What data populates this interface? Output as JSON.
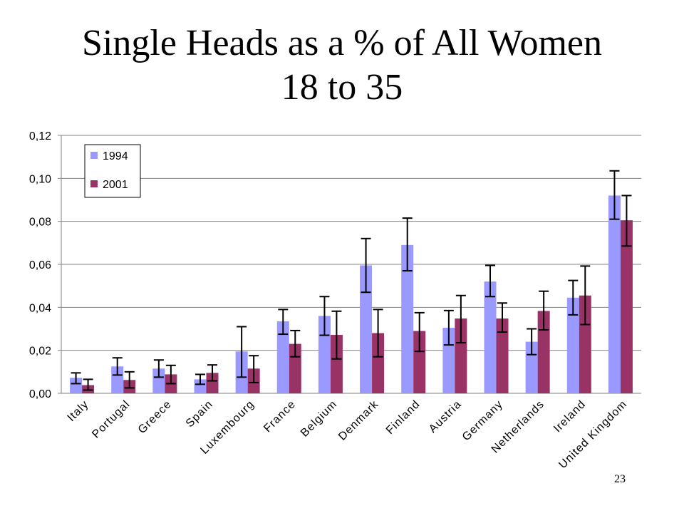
{
  "slide": {
    "title_line1": "Single Heads as a % of All Women",
    "title_line2": "18 to 35",
    "page_number": "23"
  },
  "chart_data": {
    "type": "bar",
    "title": "",
    "xlabel": "",
    "ylabel": "",
    "ylim": [
      0,
      0.12
    ],
    "yticks": [
      "0,00",
      "0,02",
      "0,04",
      "0,06",
      "0,08",
      "0,10",
      "0,12"
    ],
    "ytick_values": [
      0,
      0.02,
      0.04,
      0.06,
      0.08,
      0.1,
      0.12
    ],
    "grid": true,
    "legend_position": "top-left",
    "error_bars": true,
    "categories": [
      "Italy",
      "Portugal",
      "Greece",
      "Spain",
      "Luxembourg",
      "France",
      "Belgium",
      "Denmark",
      "Finland",
      "Austria",
      "Germany",
      "Netherlands",
      "Ireland",
      "United Kingdom"
    ],
    "series": [
      {
        "name": "1994",
        "color": "#9999ff",
        "values": [
          0.0072,
          0.0125,
          0.0115,
          0.0065,
          0.0195,
          0.0335,
          0.036,
          0.0595,
          0.069,
          0.0305,
          0.052,
          0.024,
          0.0445,
          0.092
        ],
        "error_low": [
          0.0045,
          0.0085,
          0.0075,
          0.0042,
          0.0075,
          0.0275,
          0.027,
          0.047,
          0.057,
          0.0225,
          0.045,
          0.018,
          0.0365,
          0.081
        ],
        "error_high": [
          0.0095,
          0.0165,
          0.0155,
          0.0088,
          0.031,
          0.039,
          0.045,
          0.072,
          0.0815,
          0.0385,
          0.0595,
          0.03,
          0.0525,
          0.1035
        ]
      },
      {
        "name": "2001",
        "color": "#993366",
        "values": [
          0.0038,
          0.0062,
          0.0088,
          0.0095,
          0.0115,
          0.023,
          0.0272,
          0.028,
          0.029,
          0.0348,
          0.0348,
          0.0383,
          0.0455,
          0.0805
        ],
        "error_low": [
          0.0015,
          0.0025,
          0.0045,
          0.0058,
          0.005,
          0.017,
          0.016,
          0.017,
          0.0195,
          0.0235,
          0.0285,
          0.0295,
          0.032,
          0.0685
        ],
        "error_high": [
          0.0065,
          0.01,
          0.013,
          0.0132,
          0.0175,
          0.0292,
          0.0382,
          0.039,
          0.0375,
          0.0455,
          0.042,
          0.0475,
          0.0592,
          0.092
        ]
      }
    ]
  }
}
